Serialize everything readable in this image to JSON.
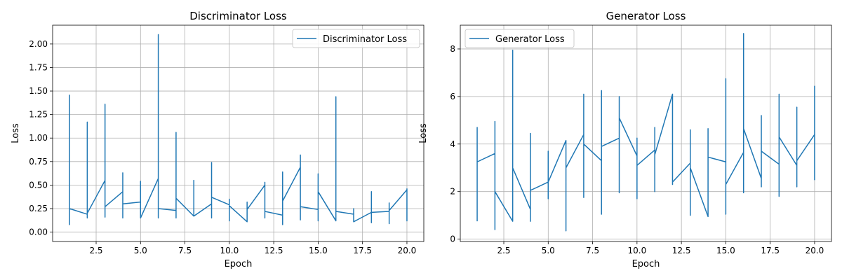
{
  "chart_data": [
    {
      "type": "line",
      "title": "Discriminator Loss",
      "xlabel": "Epoch",
      "ylabel": "Loss",
      "xlim": [
        0.05,
        20.95
      ],
      "ylim": [
        -0.1,
        2.2
      ],
      "xticks": [
        2.5,
        5.0,
        7.5,
        10.0,
        12.5,
        15.0,
        17.5,
        20.0
      ],
      "xtick_labels": [
        "2.5",
        "5.0",
        "7.5",
        "10.0",
        "12.5",
        "15.0",
        "17.5",
        "20.0"
      ],
      "yticks": [
        0.0,
        0.25,
        0.5,
        0.75,
        1.0,
        1.25,
        1.5,
        1.75,
        2.0
      ],
      "ytick_labels": [
        "0.00",
        "0.25",
        "0.50",
        "0.75",
        "1.00",
        "1.25",
        "1.50",
        "1.75",
        "2.00"
      ],
      "grid": true,
      "legend_position": "top-right",
      "color": "#1f77b4",
      "series": [
        {
          "name": "Discriminator Loss",
          "points": [
            [
              1,
              1.46
            ],
            [
              1,
              0.08
            ],
            [
              1,
              0.25
            ],
            [
              2,
              0.19
            ],
            [
              2,
              1.17
            ],
            [
              2,
              0.15
            ],
            [
              2,
              0.2
            ],
            [
              3,
              0.55
            ],
            [
              3,
              1.36
            ],
            [
              3,
              0.16
            ],
            [
              3,
              0.27
            ],
            [
              4,
              0.43
            ],
            [
              4,
              0.63
            ],
            [
              4,
              0.15
            ],
            [
              4,
              0.3
            ],
            [
              5,
              0.32
            ],
            [
              5,
              0.54
            ],
            [
              5,
              0.15
            ],
            [
              6,
              0.57
            ],
            [
              6,
              2.1
            ],
            [
              6,
              0.15
            ],
            [
              6,
              0.25
            ],
            [
              7,
              0.23
            ],
            [
              7,
              1.06
            ],
            [
              7,
              0.15
            ],
            [
              7,
              0.36
            ],
            [
              8,
              0.17
            ],
            [
              8,
              0.55
            ],
            [
              8,
              0.17
            ],
            [
              9,
              0.3
            ],
            [
              9,
              0.74
            ],
            [
              9,
              0.15
            ],
            [
              9,
              0.37
            ],
            [
              10,
              0.29
            ],
            [
              10,
              0.35
            ],
            [
              10,
              0.12
            ],
            [
              10,
              0.28
            ],
            [
              11,
              0.11
            ],
            [
              11,
              0.32
            ],
            [
              11,
              0.11
            ],
            [
              11,
              0.24
            ],
            [
              12,
              0.5
            ],
            [
              12,
              0.53
            ],
            [
              12,
              0.15
            ],
            [
              12,
              0.22
            ],
            [
              13,
              0.18
            ],
            [
              13,
              0.64
            ],
            [
              13,
              0.08
            ],
            [
              13,
              0.33
            ],
            [
              14,
              0.69
            ],
            [
              14,
              0.82
            ],
            [
              14,
              0.13
            ],
            [
              14,
              0.27
            ],
            [
              15,
              0.24
            ],
            [
              15,
              0.62
            ],
            [
              15,
              0.12
            ],
            [
              15,
              0.43
            ],
            [
              16,
              0.12
            ],
            [
              16,
              1.44
            ],
            [
              16,
              0.12
            ],
            [
              16,
              0.22
            ],
            [
              17,
              0.19
            ],
            [
              17,
              0.25
            ],
            [
              17,
              0.11
            ],
            [
              18,
              0.21
            ],
            [
              18,
              0.43
            ],
            [
              18,
              0.1
            ],
            [
              18,
              0.21
            ],
            [
              19,
              0.22
            ],
            [
              19,
              0.31
            ],
            [
              19,
              0.09
            ],
            [
              19,
              0.23
            ],
            [
              20,
              0.45
            ],
            [
              20,
              0.46
            ],
            [
              20,
              0.12
            ],
            [
              20,
              0.15
            ]
          ]
        }
      ]
    },
    {
      "type": "line",
      "title": "Generator Loss",
      "xlabel": "Epoch",
      "ylabel": "Loss",
      "xlim": [
        0.05,
        20.95
      ],
      "ylim": [
        -0.1,
        9.0
      ],
      "xticks": [
        2.5,
        5.0,
        7.5,
        10.0,
        12.5,
        15.0,
        17.5,
        20.0
      ],
      "xtick_labels": [
        "2.5",
        "5.0",
        "7.5",
        "10.0",
        "12.5",
        "15.0",
        "17.5",
        "20.0"
      ],
      "yticks": [
        0,
        2,
        4,
        6,
        8
      ],
      "ytick_labels": [
        "0",
        "2",
        "4",
        "6",
        "8"
      ],
      "grid": true,
      "legend_position": "top-left",
      "color": "#1f77b4",
      "series": [
        {
          "name": "Generator Loss",
          "points": [
            [
              1,
              0.75
            ],
            [
              1,
              4.7
            ],
            [
              1,
              3.25
            ],
            [
              2,
              3.6
            ],
            [
              2,
              0.4
            ],
            [
              2,
              4.95
            ],
            [
              2,
              2.0
            ],
            [
              3,
              0.75
            ],
            [
              3,
              7.95
            ],
            [
              3,
              3.0
            ],
            [
              4,
              1.25
            ],
            [
              4,
              0.75
            ],
            [
              4,
              4.45
            ],
            [
              4,
              2.05
            ],
            [
              5,
              2.4
            ],
            [
              5,
              1.7
            ],
            [
              5,
              3.7
            ],
            [
              5,
              2.4
            ],
            [
              6,
              4.15
            ],
            [
              6,
              0.35
            ],
            [
              6,
              3.0
            ],
            [
              7,
              4.4
            ],
            [
              7,
              1.75
            ],
            [
              7,
              6.1
            ],
            [
              7,
              4.0
            ],
            [
              8,
              3.3
            ],
            [
              8,
              1.05
            ],
            [
              8,
              6.25
            ],
            [
              8,
              3.9
            ],
            [
              9,
              4.25
            ],
            [
              9,
              1.95
            ],
            [
              9,
              6.0
            ],
            [
              9,
              5.1
            ],
            [
              10,
              3.5
            ],
            [
              10,
              1.7
            ],
            [
              10,
              4.25
            ],
            [
              10,
              3.1
            ],
            [
              11,
              3.75
            ],
            [
              11,
              2.0
            ],
            [
              11,
              4.7
            ],
            [
              11,
              3.55
            ],
            [
              12,
              6.1
            ],
            [
              12,
              2.3
            ],
            [
              12,
              2.4
            ],
            [
              13,
              3.2
            ],
            [
              13,
              4.6
            ],
            [
              13,
              1.0
            ],
            [
              13,
              3.0
            ],
            [
              14,
              0.95
            ],
            [
              14,
              4.65
            ],
            [
              14,
              3.45
            ],
            [
              15,
              3.25
            ],
            [
              15,
              1.05
            ],
            [
              15,
              6.75
            ],
            [
              15,
              2.3
            ],
            [
              16,
              3.65
            ],
            [
              16,
              1.95
            ],
            [
              16,
              8.65
            ],
            [
              16,
              4.65
            ],
            [
              17,
              2.55
            ],
            [
              17,
              2.2
            ],
            [
              17,
              5.2
            ],
            [
              17,
              3.7
            ],
            [
              18,
              3.15
            ],
            [
              18,
              1.8
            ],
            [
              18,
              6.1
            ],
            [
              18,
              4.3
            ],
            [
              19,
              3.1
            ],
            [
              19,
              2.2
            ],
            [
              19,
              5.55
            ],
            [
              19,
              3.3
            ],
            [
              20,
              4.4
            ],
            [
              20,
              2.5
            ],
            [
              20,
              6.45
            ]
          ]
        }
      ]
    }
  ]
}
